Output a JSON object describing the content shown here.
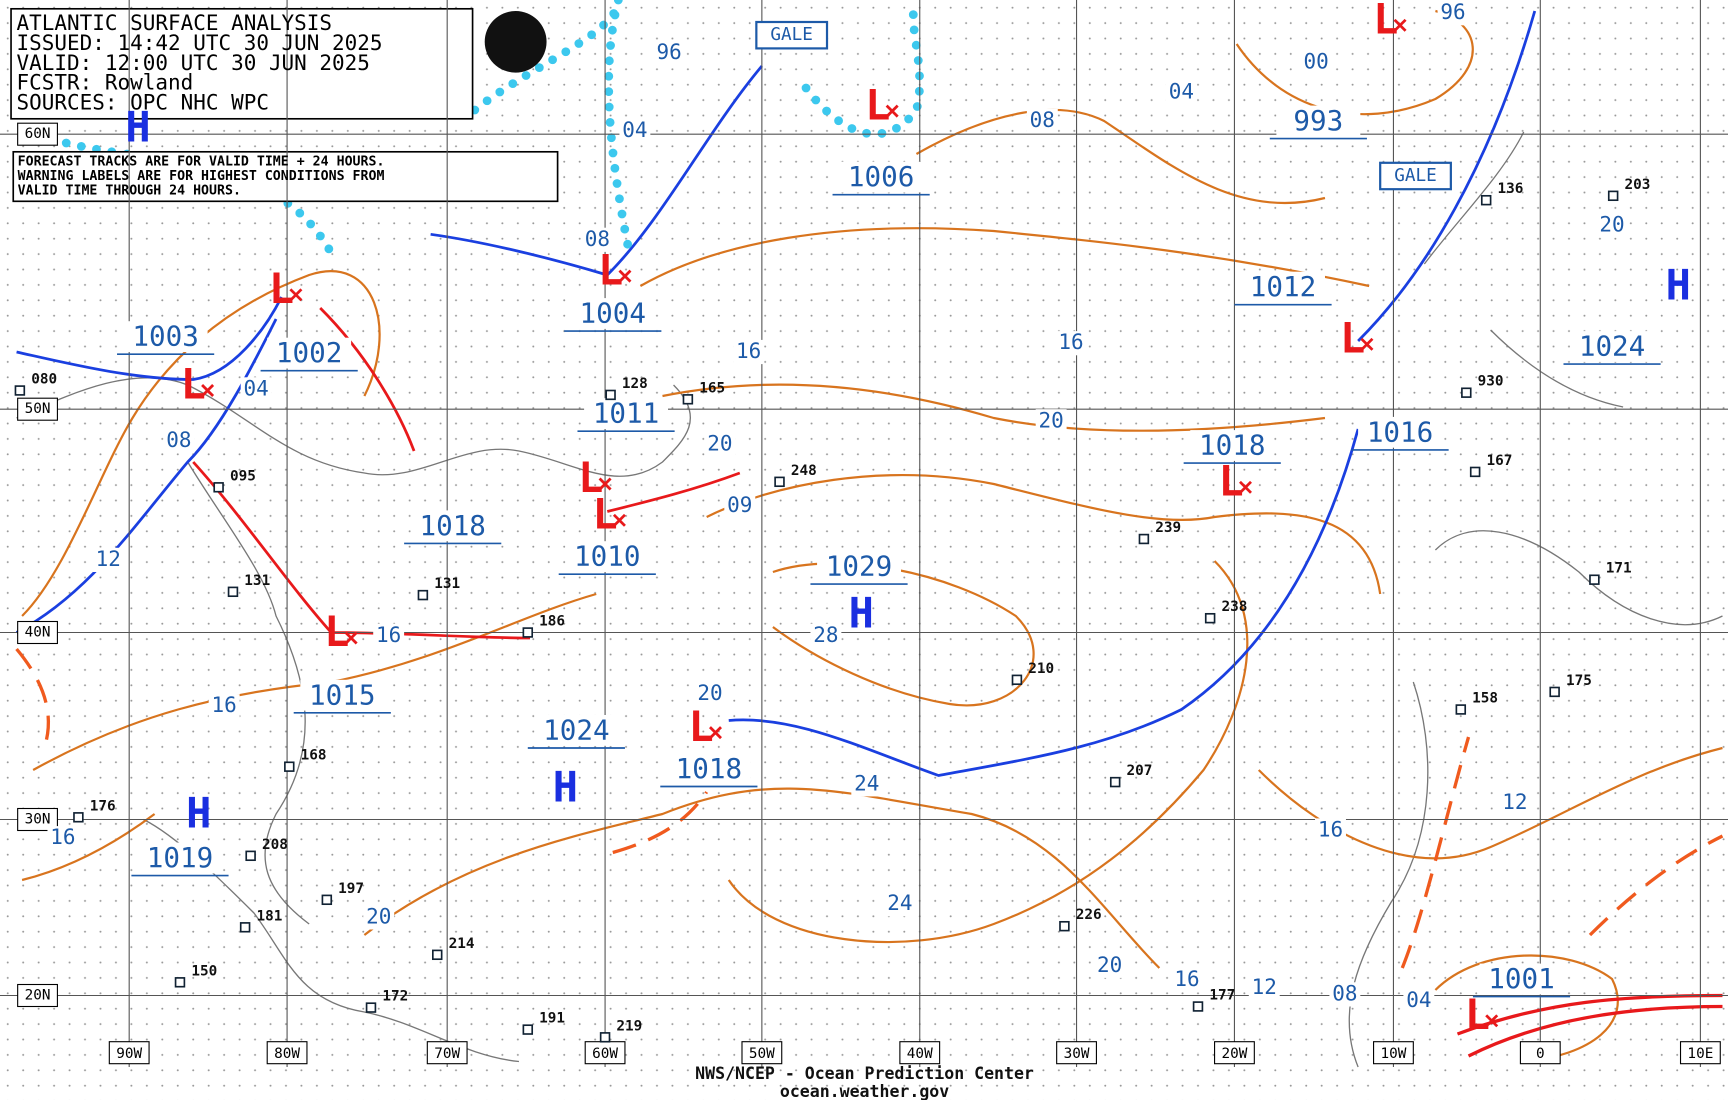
{
  "header": {
    "lines": [
      "ATLANTIC SURFACE ANALYSIS",
      "ISSUED: 14:42 UTC 30 JUN 2025",
      "VALID:  12:00 UTC 30 JUN 2025",
      "FCSTR:  Rowland",
      "SOURCES: OPC NHC WPC"
    ]
  },
  "note": {
    "lines": [
      "FORECAST TRACKS ARE FOR VALID TIME + 24 HOURS.",
      "WARNING LABELS ARE FOR HIGHEST CONDITIONS FROM",
      "VALID TIME THROUGH 24 HOURS."
    ]
  },
  "latitudes": [
    "60N",
    "50N",
    "40N",
    "30N",
    "20N"
  ],
  "longitudes": [
    "90W",
    "80W",
    "70W",
    "60W",
    "50W",
    "40W",
    "30W",
    "20W",
    "10W",
    "0",
    "10E"
  ],
  "centers": [
    "1003",
    "1002",
    "1004",
    "1011",
    "1018",
    "1010",
    "1029",
    "1015",
    "1024",
    "1018",
    "1019",
    "1006",
    "993",
    "1012",
    "1018",
    "1016",
    "1024",
    "1001"
  ],
  "highs": [
    "H",
    "H",
    "H",
    "H",
    "H"
  ],
  "lows": [
    "L",
    "L",
    "L",
    "L",
    "L",
    "L",
    "L",
    "L",
    "L",
    "L",
    "L",
    "L"
  ],
  "isobar_labels": [
    "96",
    "04",
    "08",
    "04",
    "08",
    "12",
    "16",
    "16",
    "16",
    "20",
    "16",
    "20",
    "09",
    "28",
    "20",
    "24",
    "24",
    "16",
    "20",
    "08",
    "04",
    "00",
    "96",
    "20",
    "16",
    "12",
    "20",
    "16",
    "12",
    "08",
    "04"
  ],
  "warnings": [
    "GALE",
    "GALE"
  ],
  "stations": [
    "080",
    "128",
    "165",
    "248",
    "095",
    "131",
    "131",
    "186",
    "168",
    "176",
    "208",
    "197",
    "181",
    "214",
    "150",
    "172",
    "191",
    "219",
    "210",
    "239",
    "238",
    "207",
    "226",
    "177",
    "136",
    "203",
    "930",
    "167",
    "171",
    "175",
    "158"
  ],
  "footer": {
    "agency": "NWS/NCEP - Ocean Prediction Center",
    "site": "ocean.weather.gov"
  }
}
